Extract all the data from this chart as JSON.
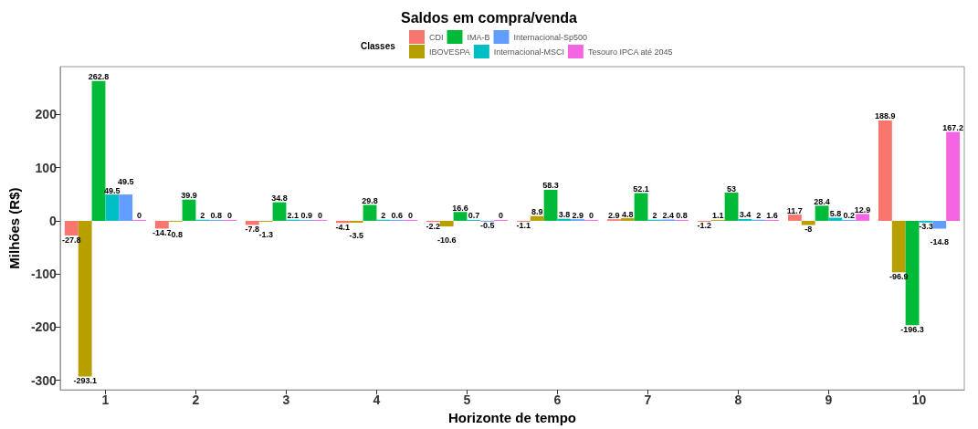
{
  "chart_data": {
    "type": "bar",
    "title": "Saldos em compra/venda",
    "xlabel": "Horizonte de tempo",
    "ylabel": "Milhões (R$)",
    "legend_title": "Classes",
    "legend": "top",
    "grid": false,
    "data_labels": true,
    "categories": [
      "1",
      "2",
      "3",
      "4",
      "5",
      "6",
      "7",
      "8",
      "9",
      "10"
    ],
    "ylim": [
      -318,
      290
    ],
    "yticks": [
      -300,
      -200,
      -100,
      0,
      100,
      200
    ],
    "series": [
      {
        "name": "CDI",
        "color": "#f8766d",
        "values": [
          -27.8,
          -14.7,
          -7.8,
          -4.1,
          -2.2,
          -1.1,
          2.9,
          -1.2,
          11.7,
          188.9
        ]
      },
      {
        "name": "IBOVESPA",
        "color": "#b79f00",
        "values": [
          -293.1,
          -0.8,
          -1.3,
          -3.5,
          -10.6,
          8.9,
          4.8,
          1.1,
          -8,
          -96.9
        ]
      },
      {
        "name": "IMA-B",
        "color": "#00ba38",
        "values": [
          262.8,
          39.9,
          34.8,
          29.8,
          16.6,
          58.3,
          52.1,
          53,
          28.4,
          -196.3
        ]
      },
      {
        "name": "Internacional-MSCI",
        "color": "#00bfc4",
        "values": [
          49.5,
          2,
          2.1,
          2,
          0.7,
          3.8,
          2,
          3.4,
          5.8,
          -3.3
        ]
      },
      {
        "name": "Internacional-Sp500",
        "color": "#619cff",
        "values": [
          49.5,
          0.8,
          0.9,
          0.6,
          -0.5,
          2.9,
          2.4,
          2,
          0.2,
          -14.8
        ]
      },
      {
        "name": "Tesouro IPCA até 2045",
        "color": "#f564e3",
        "values": [
          0,
          0,
          0,
          0,
          0,
          0,
          0.8,
          1.6,
          12.9,
          167.2
        ]
      }
    ]
  }
}
